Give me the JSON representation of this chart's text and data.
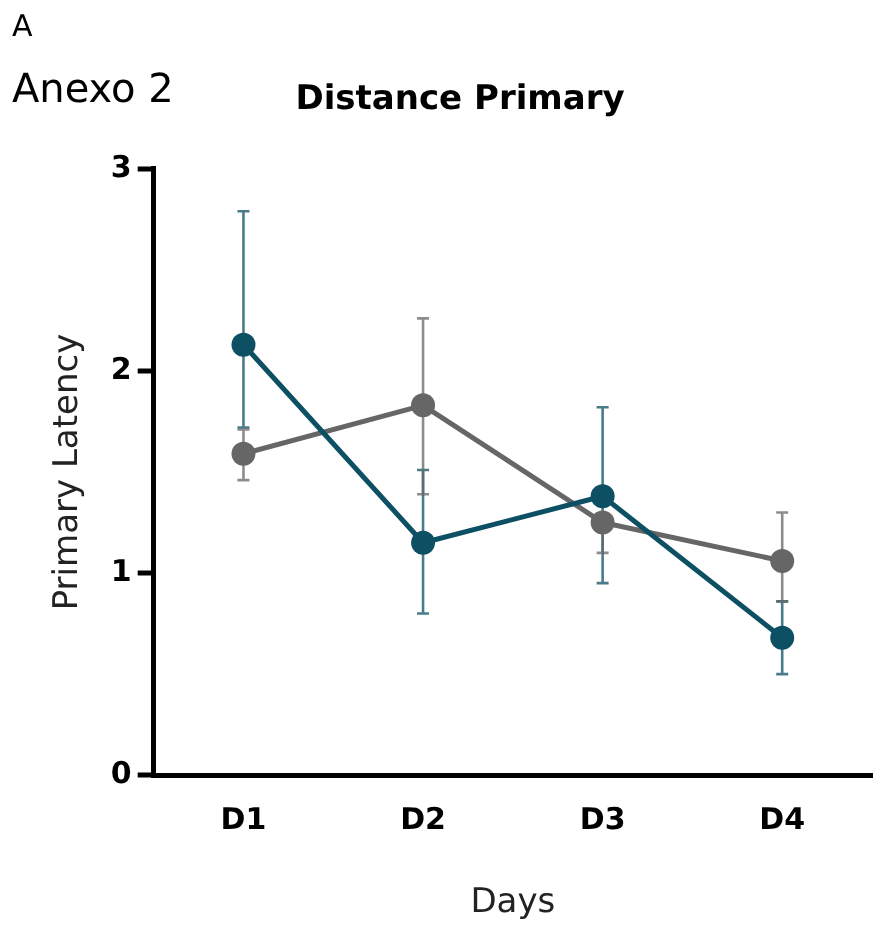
{
  "chart_data": {
    "type": "line",
    "title": "Distance Primary",
    "xlabel": "Days",
    "ylabel": "Primary Latency",
    "annotations": [
      "A",
      "Anexo 2"
    ],
    "categories": [
      "D1",
      "D2",
      "D3",
      "D4"
    ],
    "ylim": [
      0,
      3
    ],
    "yticks": [
      0,
      1,
      2,
      3
    ],
    "grid": false,
    "legend": false,
    "marker": "circle",
    "line_style": "solid",
    "series": [
      {
        "color": "#0d4f63",
        "values": [
          2.13,
          1.15,
          1.38,
          0.68
        ],
        "errors": [
          [
            1.72,
            2.79
          ],
          [
            0.8,
            1.51
          ],
          [
            0.95,
            1.82
          ],
          [
            0.5,
            0.86
          ]
        ]
      },
      {
        "color": "#666666",
        "values": [
          1.59,
          1.83,
          1.25,
          1.06
        ],
        "errors": [
          [
            1.46,
            1.71
          ],
          [
            1.39,
            2.26
          ],
          [
            1.1,
            1.25
          ],
          [
            0.86,
            1.3
          ]
        ]
      }
    ]
  }
}
